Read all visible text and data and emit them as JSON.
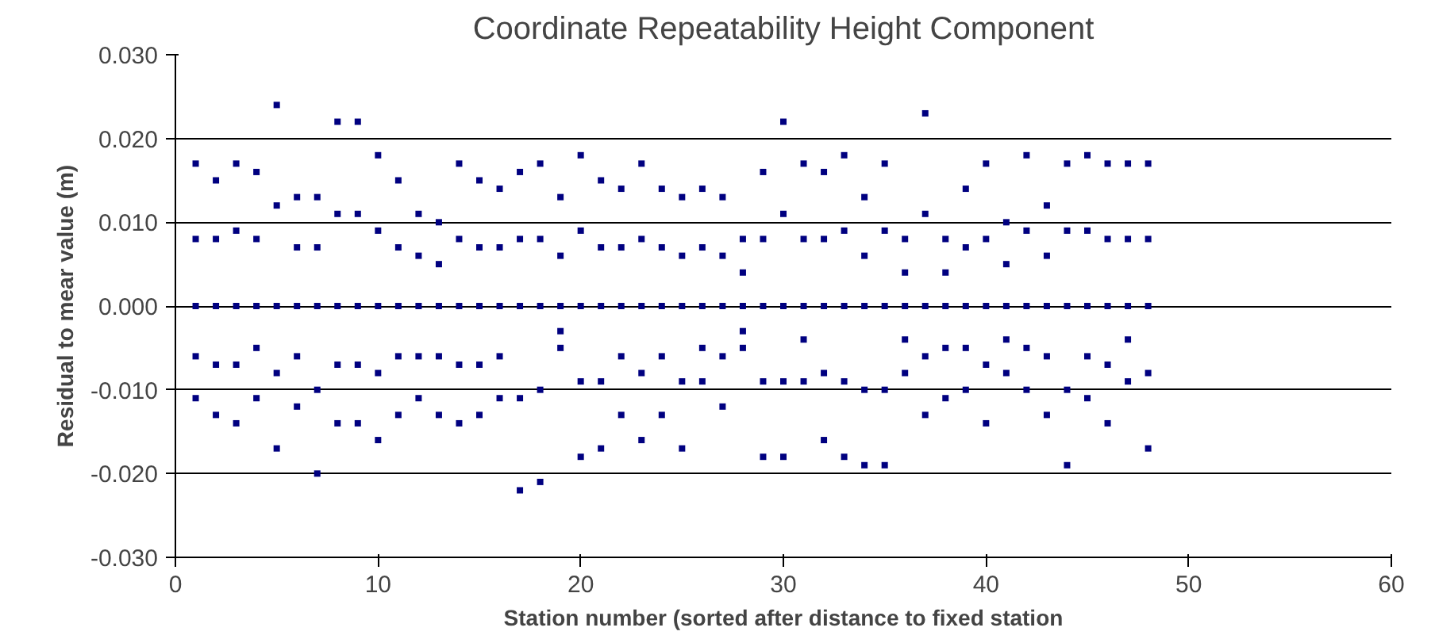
{
  "chart_data": {
    "type": "scatter",
    "title": "Coordinate Repeatability Height Component",
    "xlabel": "Station number (sorted after distance to fixed station",
    "ylabel": "Residual to mear value (m)",
    "xlim": [
      0,
      60
    ],
    "xticks": [
      0,
      10,
      20,
      30,
      40,
      50,
      60
    ],
    "ylim": [
      -0.03,
      0.03
    ],
    "yticks": [
      {
        "value": -0.03,
        "label": "-0.030"
      },
      {
        "value": -0.02,
        "label": "-0.020"
      },
      {
        "value": -0.01,
        "label": "-0.010"
      },
      {
        "value": 0,
        "label": "0.000"
      },
      {
        "value": 0.01,
        "label": "0.010"
      },
      {
        "value": 0.02,
        "label": "0.020"
      },
      {
        "value": 0.03,
        "label": "0.030"
      }
    ],
    "grid": "y",
    "marker": "square",
    "series": [
      {
        "color": "#000080",
        "x": [
          1,
          1,
          1,
          1,
          1,
          2,
          2,
          2,
          2,
          2,
          3,
          3,
          3,
          3,
          3,
          4,
          4,
          4,
          4,
          4,
          5,
          5,
          5,
          5,
          5,
          6,
          6,
          6,
          6,
          6,
          7,
          7,
          7,
          7,
          7,
          8,
          8,
          8,
          8,
          8,
          9,
          9,
          9,
          9,
          9,
          10,
          10,
          10,
          10,
          10,
          11,
          11,
          11,
          11,
          11,
          12,
          12,
          12,
          12,
          12,
          13,
          13,
          13,
          13,
          13,
          14,
          14,
          14,
          14,
          14,
          15,
          15,
          15,
          15,
          15,
          16,
          16,
          16,
          16,
          16,
          17,
          17,
          17,
          17,
          17,
          18,
          18,
          18,
          18,
          18,
          19,
          19,
          19,
          19,
          19,
          20,
          20,
          20,
          20,
          20,
          21,
          21,
          21,
          21,
          21,
          22,
          22,
          22,
          22,
          22,
          23,
          23,
          23,
          23,
          23,
          24,
          24,
          24,
          24,
          24,
          25,
          25,
          25,
          25,
          25,
          26,
          26,
          26,
          26,
          26,
          27,
          27,
          27,
          27,
          27,
          28,
          28,
          28,
          28,
          28,
          29,
          29,
          29,
          29,
          29,
          30,
          30,
          30,
          30,
          30,
          31,
          31,
          31,
          31,
          31,
          32,
          32,
          32,
          32,
          32,
          33,
          33,
          33,
          33,
          33,
          34,
          34,
          34,
          34,
          34,
          35,
          35,
          35,
          35,
          35,
          36,
          36,
          36,
          36,
          36,
          37,
          37,
          37,
          37,
          37,
          38,
          38,
          38,
          38,
          38,
          39,
          39,
          39,
          39,
          39,
          40,
          40,
          40,
          40,
          40,
          41,
          41,
          41,
          41,
          41,
          42,
          42,
          42,
          42,
          42,
          43,
          43,
          43,
          43,
          43,
          44,
          44,
          44,
          44,
          44,
          45,
          45,
          45,
          45,
          45,
          46,
          46,
          46,
          46,
          46,
          47,
          47,
          47,
          47,
          47,
          48,
          48,
          48,
          48,
          48
        ],
        "values": [
          0.017,
          0.008,
          0,
          -0.006,
          -0.011,
          0.015,
          0.008,
          0,
          -0.007,
          -0.013,
          0.017,
          0.009,
          0,
          -0.007,
          -0.014,
          0.016,
          0.008,
          0,
          -0.005,
          -0.011,
          0.024,
          0.012,
          0,
          -0.008,
          -0.017,
          0.013,
          0.007,
          0,
          -0.006,
          -0.012,
          0.013,
          0.007,
          0,
          -0.01,
          -0.02,
          0.022,
          0.011,
          0,
          -0.007,
          -0.014,
          0.022,
          0.011,
          0,
          -0.007,
          -0.014,
          0.018,
          0.009,
          0,
          -0.008,
          -0.016,
          0.015,
          0.007,
          0,
          -0.006,
          -0.013,
          0.011,
          0.006,
          0,
          -0.006,
          -0.011,
          0.01,
          0.005,
          0,
          -0.006,
          -0.013,
          0.017,
          0.008,
          0,
          -0.007,
          -0.014,
          0.015,
          0.007,
          0,
          -0.007,
          -0.013,
          0.014,
          0.007,
          0,
          -0.006,
          -0.011,
          0.016,
          0.008,
          0,
          -0.011,
          -0.022,
          0.017,
          0.008,
          0,
          -0.01,
          -0.021,
          0.013,
          0.006,
          0,
          -0.003,
          -0.005,
          0.018,
          0.009,
          0,
          -0.009,
          -0.018,
          0.015,
          0.007,
          0,
          -0.009,
          -0.017,
          0.014,
          0.007,
          0,
          -0.006,
          -0.013,
          0.017,
          0.008,
          0,
          -0.008,
          -0.016,
          0.014,
          0.007,
          0,
          -0.006,
          -0.013,
          0.013,
          0.006,
          0,
          -0.009,
          -0.017,
          0.014,
          0.007,
          0,
          -0.005,
          -0.009,
          0.013,
          0.006,
          0,
          -0.006,
          -0.012,
          0.008,
          0.004,
          0,
          -0.003,
          -0.005,
          0.016,
          0.008,
          0,
          -0.009,
          -0.018,
          0.022,
          0.011,
          0,
          -0.009,
          -0.018,
          0.017,
          0.008,
          0,
          -0.004,
          -0.009,
          0.016,
          0.008,
          0,
          -0.008,
          -0.016,
          0.018,
          0.009,
          0,
          -0.009,
          -0.018,
          0.013,
          0.006,
          0,
          -0.01,
          -0.019,
          0.017,
          0.009,
          0,
          -0.01,
          -0.019,
          0.008,
          0.004,
          0,
          -0.004,
          -0.008,
          0.023,
          0.011,
          0,
          -0.006,
          -0.013,
          0.008,
          0.004,
          0,
          -0.005,
          -0.011,
          0.014,
          0.007,
          0,
          -0.005,
          -0.01,
          0.017,
          0.008,
          0,
          -0.007,
          -0.014,
          0.01,
          0.005,
          0,
          -0.004,
          -0.008,
          0.018,
          0.009,
          0,
          -0.005,
          -0.01,
          0.012,
          0.006,
          0,
          -0.006,
          -0.013,
          0.017,
          0.009,
          0,
          -0.01,
          -0.019,
          0.018,
          0.009,
          0,
          -0.006,
          -0.011,
          0.017,
          0.008,
          0,
          -0.007,
          -0.014,
          0.017,
          0.008,
          0,
          -0.004,
          -0.009,
          0.017,
          0.008,
          0,
          -0.008,
          -0.017
        ]
      }
    ]
  }
}
